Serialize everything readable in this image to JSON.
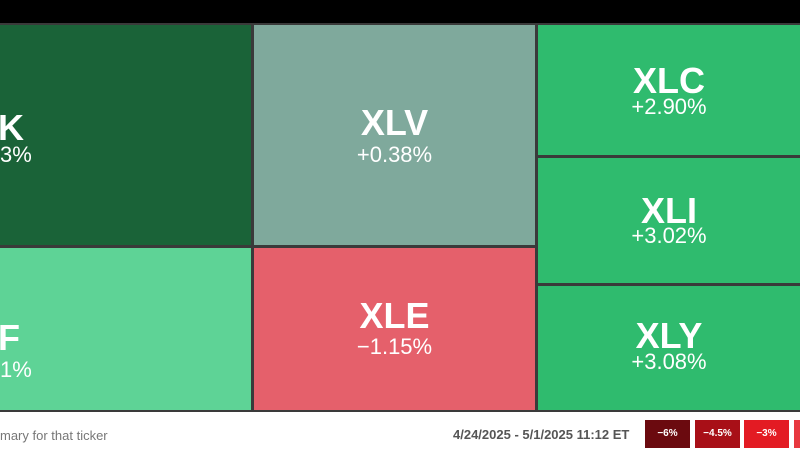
{
  "tiles": [
    {
      "ticker": "K",
      "change": "3%"
    },
    {
      "ticker": "F",
      "change": "1%"
    },
    {
      "ticker": "XLV",
      "change": "+0.38%"
    },
    {
      "ticker": "XLE",
      "change": "−1.15%"
    },
    {
      "ticker": "XLC",
      "change": "+2.90%"
    },
    {
      "ticker": "XLI",
      "change": "+3.02%"
    },
    {
      "ticker": "XLY",
      "change": "+3.08%"
    }
  ],
  "footer": {
    "hint": "mary for that ticker",
    "date_range": "4/24/2025 - 5/1/2025 11:12 ET",
    "legend": [
      "−6%",
      "−4.5%",
      "−3%"
    ]
  }
}
